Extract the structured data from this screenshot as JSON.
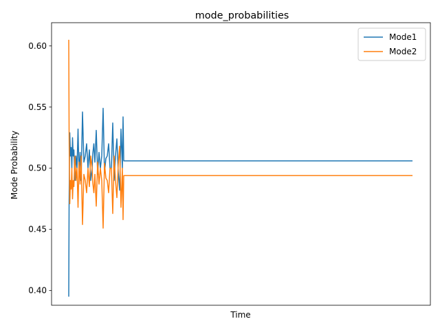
{
  "chart_data": {
    "type": "line",
    "title": "mode_probabilities",
    "xlabel": "Time",
    "ylabel": "Mode Probability",
    "xlim": [
      0,
      1000
    ],
    "ylim": [
      0.388,
      0.619
    ],
    "yticks": [
      0.4,
      0.45,
      0.5,
      0.55,
      0.6
    ],
    "ytick_labels": [
      "0.40",
      "0.45",
      "0.50",
      "0.55",
      "0.60"
    ],
    "xticks": [],
    "grid": false,
    "legend_position": "top-right",
    "series": [
      {
        "name": "Mode1",
        "color": "#1f77b4",
        "x": [
          0,
          1,
          2,
          3,
          5,
          7,
          9,
          11,
          13,
          15,
          18,
          21,
          24,
          27,
          30,
          33,
          36,
          40,
          44,
          48,
          52,
          56,
          60,
          64,
          68,
          70,
          73,
          76,
          80,
          84,
          88,
          92,
          96,
          100,
          104,
          108,
          112,
          116,
          120,
          124,
          128,
          132,
          136,
          140,
          144,
          148,
          152,
          156,
          158,
          160,
          1000
        ],
        "y": [
          0.395,
          0.47,
          0.505,
          0.529,
          0.51,
          0.517,
          0.5,
          0.525,
          0.51,
          0.515,
          0.49,
          0.51,
          0.5,
          0.532,
          0.495,
          0.513,
          0.49,
          0.546,
          0.505,
          0.51,
          0.52,
          0.5,
          0.515,
          0.49,
          0.5,
          0.512,
          0.52,
          0.505,
          0.531,
          0.495,
          0.513,
          0.5,
          0.51,
          0.549,
          0.496,
          0.508,
          0.51,
          0.52,
          0.5,
          0.5,
          0.537,
          0.49,
          0.51,
          0.524,
          0.497,
          0.482,
          0.532,
          0.5,
          0.542,
          0.506,
          0.506
        ]
      },
      {
        "name": "Mode2",
        "color": "#ff7f0e",
        "x": [
          0,
          1,
          2,
          3,
          5,
          7,
          9,
          11,
          13,
          15,
          18,
          21,
          24,
          27,
          30,
          33,
          36,
          40,
          44,
          48,
          52,
          56,
          60,
          64,
          68,
          70,
          73,
          76,
          80,
          84,
          88,
          92,
          96,
          100,
          104,
          108,
          112,
          116,
          120,
          124,
          128,
          132,
          136,
          140,
          144,
          148,
          152,
          156,
          158,
          160,
          1000
        ],
        "y": [
          0.605,
          0.53,
          0.495,
          0.471,
          0.49,
          0.483,
          0.5,
          0.475,
          0.49,
          0.485,
          0.51,
          0.49,
          0.5,
          0.468,
          0.505,
          0.487,
          0.51,
          0.454,
          0.495,
          0.49,
          0.48,
          0.5,
          0.485,
          0.51,
          0.5,
          0.488,
          0.48,
          0.495,
          0.469,
          0.505,
          0.487,
          0.5,
          0.49,
          0.451,
          0.504,
          0.492,
          0.49,
          0.48,
          0.5,
          0.5,
          0.463,
          0.51,
          0.49,
          0.476,
          0.503,
          0.518,
          0.468,
          0.5,
          0.458,
          0.494,
          0.494
        ]
      }
    ]
  }
}
